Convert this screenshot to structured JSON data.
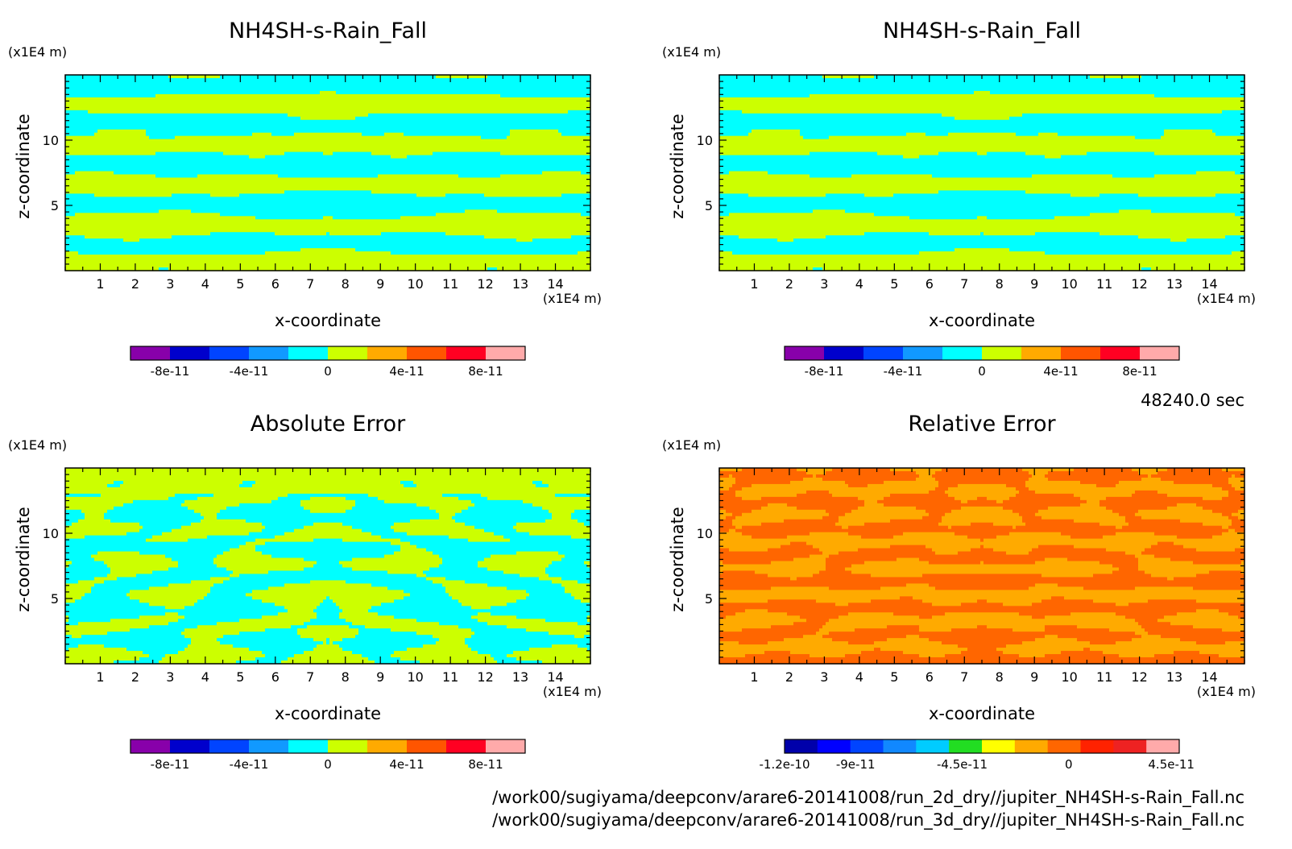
{
  "time_label": "48240.0 sec",
  "file_paths": [
    "/work00/sugiyama/deepconv/arare6-20141008/run_2d_dry//jupiter_NH4SH-s-Rain_Fall.nc",
    "/work00/sugiyama/deepconv/arare6-20141008/run_3d_dry//jupiter_NH4SH-s-Rain_Fall.nc"
  ],
  "chart_data": [
    {
      "type": "heatmap",
      "title": "NH4SH-s-Rain_Fall",
      "xlabel": "x-coordinate",
      "ylabel": "z-coordinate",
      "x_unit": "(x1E4 m)",
      "y_unit": "(x1E4 m)",
      "xlim": [
        0,
        15
      ],
      "ylim": [
        0,
        15
      ],
      "x_ticks": [
        "1",
        "2",
        "3",
        "4",
        "5",
        "6",
        "7",
        "8",
        "9",
        "10",
        "11",
        "12",
        "13",
        "14"
      ],
      "y_ticks": [
        "5",
        "10"
      ],
      "pattern": "rain-2d",
      "field_colors": [
        "#00ffff",
        "#ccff00"
      ],
      "colorbar": {
        "levels": 10,
        "colors": [
          "#8800aa",
          "#0000cc",
          "#0044ff",
          "#1199ff",
          "#00ffff",
          "#ccff00",
          "#ffaa00",
          "#ff5500",
          "#ff0022",
          "#ffaaaa"
        ],
        "labels": [
          {
            "text": "-8e-11",
            "pos": 0.1
          },
          {
            "text": "-4e-11",
            "pos": 0.3
          },
          {
            "text": "0",
            "pos": 0.5
          },
          {
            "text": "4e-11",
            "pos": 0.7
          },
          {
            "text": "8e-11",
            "pos": 0.9
          }
        ]
      }
    },
    {
      "type": "heatmap",
      "title": "NH4SH-s-Rain_Fall",
      "xlabel": "x-coordinate",
      "ylabel": "z-coordinate",
      "x_unit": "(x1E4 m)",
      "y_unit": "(x1E4 m)",
      "xlim": [
        0,
        15
      ],
      "ylim": [
        0,
        15
      ],
      "x_ticks": [
        "1",
        "2",
        "3",
        "4",
        "5",
        "6",
        "7",
        "8",
        "9",
        "10",
        "11",
        "12",
        "13",
        "14"
      ],
      "y_ticks": [
        "5",
        "10"
      ],
      "pattern": "rain-3d",
      "field_colors": [
        "#00ffff",
        "#ccff00"
      ],
      "colorbar": {
        "levels": 10,
        "colors": [
          "#8800aa",
          "#0000cc",
          "#0044ff",
          "#1199ff",
          "#00ffff",
          "#ccff00",
          "#ffaa00",
          "#ff5500",
          "#ff0022",
          "#ffaaaa"
        ],
        "labels": [
          {
            "text": "-8e-11",
            "pos": 0.1
          },
          {
            "text": "-4e-11",
            "pos": 0.3
          },
          {
            "text": "0",
            "pos": 0.5
          },
          {
            "text": "4e-11",
            "pos": 0.7
          },
          {
            "text": "8e-11",
            "pos": 0.9
          }
        ]
      }
    },
    {
      "type": "heatmap",
      "title": "Absolute Error",
      "xlabel": "x-coordinate",
      "ylabel": "z-coordinate",
      "x_unit": "(x1E4 m)",
      "y_unit": "(x1E4 m)",
      "xlim": [
        0,
        15
      ],
      "ylim": [
        0,
        15
      ],
      "x_ticks": [
        "1",
        "2",
        "3",
        "4",
        "5",
        "6",
        "7",
        "8",
        "9",
        "10",
        "11",
        "12",
        "13",
        "14"
      ],
      "y_ticks": [
        "5",
        "10"
      ],
      "pattern": "abs-error",
      "field_colors": [
        "#00ffff",
        "#ccff00"
      ],
      "colorbar": {
        "levels": 10,
        "colors": [
          "#8800aa",
          "#0000cc",
          "#0044ff",
          "#1199ff",
          "#00ffff",
          "#ccff00",
          "#ffaa00",
          "#ff5500",
          "#ff0022",
          "#ffaaaa"
        ],
        "labels": [
          {
            "text": "-8e-11",
            "pos": 0.1
          },
          {
            "text": "-4e-11",
            "pos": 0.3
          },
          {
            "text": "0",
            "pos": 0.5
          },
          {
            "text": "4e-11",
            "pos": 0.7
          },
          {
            "text": "8e-11",
            "pos": 0.9
          }
        ]
      }
    },
    {
      "type": "heatmap",
      "title": "Relative Error",
      "xlabel": "x-coordinate",
      "ylabel": "z-coordinate",
      "x_unit": "(x1E4 m)",
      "y_unit": "(x1E4 m)",
      "xlim": [
        0,
        15
      ],
      "ylim": [
        0,
        15
      ],
      "x_ticks": [
        "1",
        "2",
        "3",
        "4",
        "5",
        "6",
        "7",
        "8",
        "9",
        "10",
        "11",
        "12",
        "13",
        "14"
      ],
      "y_ticks": [
        "5",
        "10"
      ],
      "pattern": "rel-error",
      "field_colors": [
        "#ffaa00",
        "#ff6600"
      ],
      "colorbar": {
        "levels": 12,
        "colors": [
          "#0000aa",
          "#0000ff",
          "#0044ff",
          "#1188ff",
          "#00ccff",
          "#22dd22",
          "#ffff00",
          "#ffaa00",
          "#ff6600",
          "#ff2200",
          "#ee2222",
          "#ffaaaa"
        ],
        "labels": [
          {
            "text": "-1.2e-10",
            "pos": 0.0
          },
          {
            "text": "-9e-11",
            "pos": 0.18
          },
          {
            "text": "-4.5e-11",
            "pos": 0.45
          },
          {
            "text": "0",
            "pos": 0.72
          },
          {
            "text": "4.5e-11",
            "pos": 0.98
          }
        ]
      }
    }
  ]
}
